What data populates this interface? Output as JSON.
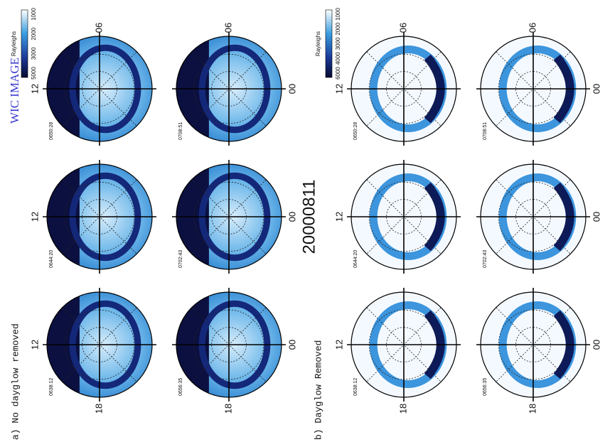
{
  "panels": [
    {
      "label": "a) No dayglow removed",
      "colorbar": {
        "title": "Rayleighs",
        "ticks": [
          "5000",
          "3000",
          "2000",
          "1000"
        ]
      },
      "images": [
        {
          "time": "0638:12"
        },
        {
          "time": "0644:20"
        },
        {
          "time": "0650:28"
        },
        {
          "time": "0656:35"
        },
        {
          "time": "0702:43"
        },
        {
          "time": "0708:51"
        }
      ]
    },
    {
      "label": "b) Dayglow Removed",
      "colorbar": {
        "title": "Rayleighs",
        "ticks": [
          "6000",
          "4000",
          "3000",
          "2000",
          "1000"
        ]
      },
      "images": [
        {
          "time": "0638:12"
        },
        {
          "time": "0644:20"
        },
        {
          "time": "0650:28"
        },
        {
          "time": "0656:35"
        },
        {
          "time": "0702:43"
        },
        {
          "time": "0708:51"
        }
      ]
    }
  ],
  "date": "20000811",
  "instrument": "WIC IMAGE",
  "mlt_labels": {
    "top": "12",
    "bottom": "00",
    "left": "18",
    "right": "06"
  }
}
